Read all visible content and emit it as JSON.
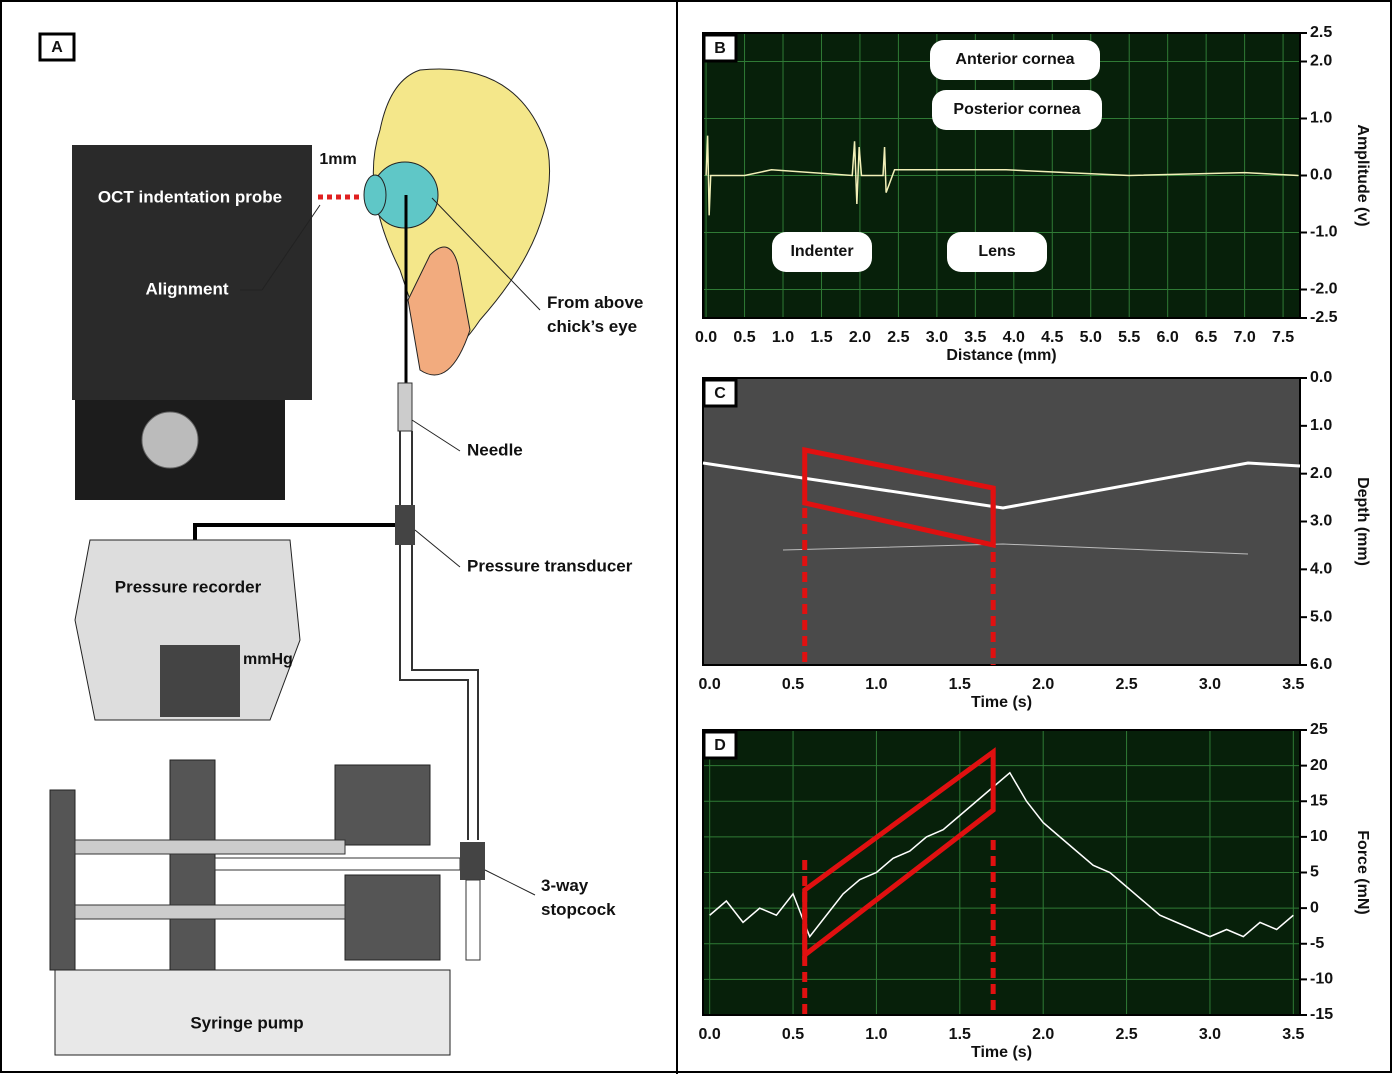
{
  "panel_a": {
    "letter": "A",
    "labels": {
      "probe": "OCT indentation probe",
      "gap": "1mm",
      "alignment": "Alignment",
      "eye": "From above\nchick’s eye",
      "needle": "Needle",
      "transducer": "Pressure transducer",
      "recorder": "Pressure recorder",
      "unit": "mmHg",
      "stopcock": "3-way\nstopcock",
      "pump": "Syringe pump"
    }
  },
  "chart_data": [
    {
      "type": "line",
      "title": "B",
      "xlabel": "Distance (mm)",
      "ylabel": "Amplitude (v)",
      "color": "#f2f0b8",
      "xlim": [
        -0.04,
        7.72
      ],
      "ylim": [
        -2.5,
        2.5
      ],
      "xticks": [
        {
          "value": 0,
          "label": "0.0"
        },
        {
          "value": 0.5,
          "label": "0.5"
        },
        {
          "value": 1,
          "label": "1.0"
        },
        {
          "value": 1.5,
          "label": "1.5"
        },
        {
          "value": 2,
          "label": "2.0"
        },
        {
          "value": 2.5,
          "label": "2.5"
        },
        {
          "value": 3,
          "label": "3.0"
        },
        {
          "value": 3.5,
          "label": "3.5"
        },
        {
          "value": 4,
          "label": "4.0"
        },
        {
          "value": 4.5,
          "label": "4.5"
        },
        {
          "value": 5,
          "label": "5.0"
        },
        {
          "value": 5.5,
          "label": "5.5"
        },
        {
          "value": 6,
          "label": "6.0"
        },
        {
          "value": 6.5,
          "label": "6.5"
        },
        {
          "value": 7,
          "label": "7.0"
        },
        {
          "value": 7.5,
          "label": "7.5"
        }
      ],
      "yticks": [
        {
          "value": 2.5,
          "label": "2.5"
        },
        {
          "value": 2,
          "label": "2.0"
        },
        {
          "value": 1,
          "label": "1.0"
        },
        {
          "value": 0,
          "label": "0.0"
        },
        {
          "value": -1,
          "label": "-1.0"
        },
        {
          "value": -2,
          "label": "-2.0"
        },
        {
          "value": -2.5,
          "label": "-2.5"
        }
      ],
      "x": [
        0,
        0.02,
        0.04,
        0.06,
        0.5,
        0.85,
        1.9,
        1.93,
        1.96,
        1.99,
        2.02,
        2.3,
        2.32,
        2.34,
        2.45,
        3.9,
        5.5,
        7.0,
        7.7
      ],
      "values": [
        0,
        0.7,
        -0.7,
        0,
        0,
        0.1,
        0,
        0.6,
        -0.5,
        0.5,
        0,
        0,
        0.5,
        -0.3,
        0.1,
        0.1,
        0,
        0.05,
        0
      ],
      "annotations": [
        "Anterior  cornea",
        "Posterior cornea",
        "Indenter",
        "Lens"
      ]
    },
    {
      "type": "image",
      "title": "C",
      "xlabel": "Time (s)",
      "ylabel": "Depth (mm)",
      "xlim": [
        -0.04,
        3.54
      ],
      "ylim": [
        6,
        0
      ],
      "xticks": [
        {
          "value": 0,
          "label": "0.0"
        },
        {
          "value": 0.5,
          "label": "0.5"
        },
        {
          "value": 1,
          "label": "1.0"
        },
        {
          "value": 1.5,
          "label": "1.5"
        },
        {
          "value": 2,
          "label": "2.0"
        },
        {
          "value": 2.5,
          "label": "2.5"
        },
        {
          "value": 3,
          "label": "3.0"
        },
        {
          "value": 3.5,
          "label": "3.5"
        }
      ],
      "yticks": [
        {
          "value": 0,
          "label": "0.0"
        },
        {
          "value": 1,
          "label": "1.0"
        },
        {
          "value": 2,
          "label": "2.0"
        },
        {
          "value": 3,
          "label": "3.0"
        },
        {
          "value": 4,
          "label": "4.0"
        },
        {
          "value": 5,
          "label": "5.0"
        },
        {
          "value": 6,
          "label": "6.0"
        }
      ]
    },
    {
      "type": "line",
      "title": "D",
      "xlabel": "Time (s)",
      "ylabel": "Force (mN)",
      "color": "#ffffff",
      "xlim": [
        -0.04,
        3.54
      ],
      "ylim": [
        -15,
        25
      ],
      "xticks": [
        {
          "value": 0,
          "label": "0.0"
        },
        {
          "value": 0.5,
          "label": "0.5"
        },
        {
          "value": 1,
          "label": "1.0"
        },
        {
          "value": 1.5,
          "label": "1.5"
        },
        {
          "value": 2,
          "label": "2.0"
        },
        {
          "value": 2.5,
          "label": "2.5"
        },
        {
          "value": 3,
          "label": "3.0"
        },
        {
          "value": 3.5,
          "label": "3.5"
        }
      ],
      "yticks": [
        25,
        20,
        15,
        10,
        5,
        0,
        -5,
        -10,
        -15
      ],
      "x": [
        0,
        0.1,
        0.2,
        0.3,
        0.4,
        0.5,
        0.6,
        0.7,
        0.8,
        0.9,
        1.0,
        1.1,
        1.2,
        1.3,
        1.4,
        1.5,
        1.6,
        1.7,
        1.8,
        1.9,
        2.0,
        2.1,
        2.2,
        2.3,
        2.4,
        2.5,
        2.6,
        2.7,
        2.8,
        2.9,
        3.0,
        3.1,
        3.2,
        3.3,
        3.4,
        3.5
      ],
      "values": [
        -1,
        1,
        -2,
        0,
        -1,
        2,
        -4,
        -1,
        2,
        4,
        5,
        7,
        8,
        10,
        11,
        13,
        15,
        17,
        19,
        15,
        12,
        10,
        8,
        6,
        5,
        3,
        1,
        -1,
        -2,
        -3,
        -4,
        -3,
        -4,
        -2,
        -3,
        -1
      ]
    }
  ]
}
